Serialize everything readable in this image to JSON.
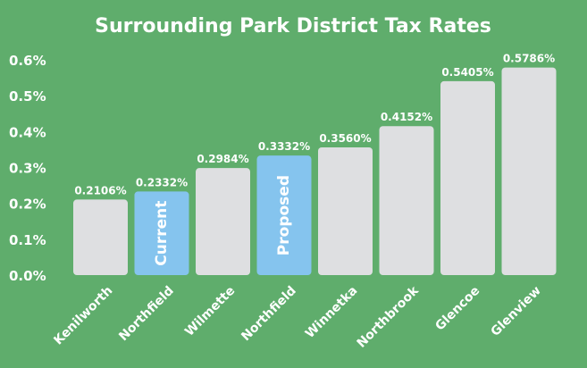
{
  "chart_data": {
    "type": "bar",
    "title": "Surrounding Park District Tax Rates",
    "xlabel": "",
    "ylabel": "",
    "ylim": [
      0,
      0.6
    ],
    "yticks": [
      0.0,
      0.1,
      0.2,
      0.3,
      0.4,
      0.5,
      0.6
    ],
    "ytick_labels": [
      "0.0%",
      "0.1%",
      "0.2%",
      "0.3%",
      "0.4%",
      "0.5%",
      "0.6%"
    ],
    "grid": false,
    "legend": "none",
    "categories": [
      "Kenilworth",
      "Northfield",
      "Wilmette",
      "Northfield",
      "Winnetka",
      "Northbrook",
      "Glencoe",
      "Glenview"
    ],
    "values": [
      0.2106,
      0.2332,
      0.2984,
      0.3332,
      0.356,
      0.4152,
      0.5405,
      0.5786
    ],
    "value_labels": [
      "0.2106%",
      "0.2332%",
      "0.2984%",
      "0.3332%",
      "0.3560%",
      "0.4152%",
      "0.5405%",
      "0.5786%"
    ],
    "bar_annotations": [
      "",
      "Current",
      "",
      "Proposed",
      "",
      "",
      "",
      ""
    ],
    "highlighted": [
      false,
      true,
      false,
      true,
      false,
      false,
      false,
      false
    ],
    "colors": {
      "background": "#5fad6c",
      "bar": "#dedfe1",
      "highlight": "#85c4ee",
      "text": "#ffffff"
    }
  }
}
